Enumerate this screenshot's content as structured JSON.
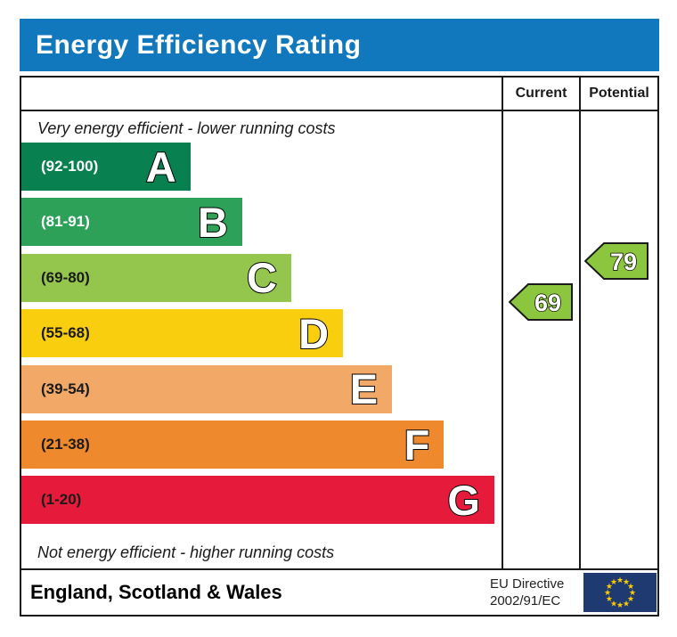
{
  "title": "Energy Efficiency Rating",
  "banner_color": "#1278be",
  "columns": {
    "current": "Current",
    "potential": "Potential"
  },
  "top_note": "Very energy efficient - lower running costs",
  "bottom_note": "Not energy efficient - higher running costs",
  "footer": {
    "region": "England, Scotland & Wales",
    "directive_line1": "EU Directive",
    "directive_line2": "2002/91/EC",
    "flag_bg": "#1f3a70",
    "star_color": "#ffcc00"
  },
  "chart_data": {
    "type": "bar",
    "title": "Energy Efficiency Rating",
    "xlabel": "",
    "ylabel": "",
    "legend": [
      "Current",
      "Potential"
    ],
    "bands": [
      {
        "letter": "A",
        "range": "(92-100)",
        "min": 92,
        "max": 100,
        "color": "#088050",
        "label_color": "light",
        "width_pct": 35.2
      },
      {
        "letter": "B",
        "range": "(81-91)",
        "min": 81,
        "max": 91,
        "color": "#2ea158",
        "label_color": "light",
        "width_pct": 46.0
      },
      {
        "letter": "C",
        "range": "(69-80)",
        "min": 69,
        "max": 80,
        "color": "#94c64d",
        "label_color": "dark",
        "width_pct": 56.2
      },
      {
        "letter": "D",
        "range": "(55-68)",
        "min": 55,
        "max": 68,
        "color": "#f8ce0f",
        "label_color": "dark",
        "width_pct": 67.0
      },
      {
        "letter": "E",
        "range": "(39-54)",
        "min": 39,
        "max": 54,
        "color": "#f2a968",
        "label_color": "dark",
        "width_pct": 77.2
      },
      {
        "letter": "F",
        "range": "(21-38)",
        "min": 21,
        "max": 38,
        "color": "#ee8a2d",
        "label_color": "dark",
        "width_pct": 88.0
      },
      {
        "letter": "G",
        "range": "(1-20)",
        "min": 1,
        "max": 20,
        "color": "#e61a3b",
        "label_color": "dark",
        "width_pct": 98.5
      }
    ],
    "current": {
      "value": 69,
      "band": "C",
      "arrow_color": "#8cc63e"
    },
    "potential": {
      "value": 79,
      "band": "C",
      "arrow_color": "#8cc63e"
    }
  }
}
